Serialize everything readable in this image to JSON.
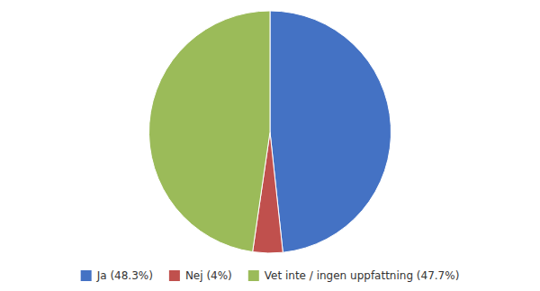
{
  "chart_data": {
    "type": "pie",
    "categories": [
      "Ja (48.3%)",
      "Nej (4%)",
      "Vet inte / ingen uppfattning (47.7%)"
    ],
    "values": [
      48.3,
      4.0,
      47.7
    ],
    "colors": [
      "#4472C4",
      "#C0504D",
      "#9BBB59"
    ],
    "legend": "bottom"
  }
}
